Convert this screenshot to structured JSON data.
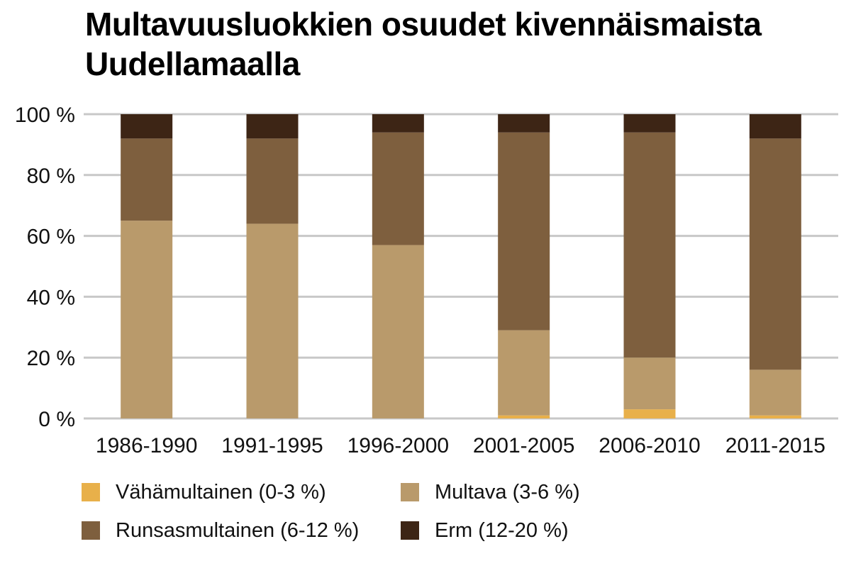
{
  "chart_data": {
    "type": "bar",
    "stacked": true,
    "title_lines": [
      "Multavuusluokkien osuudet kivennäismaista",
      "Uudellamaalla"
    ],
    "xlabel": "",
    "ylabel": "",
    "ylim": [
      0,
      100
    ],
    "yticks": [
      0,
      20,
      40,
      60,
      80,
      100
    ],
    "ytick_labels": [
      "0 %",
      "20 %",
      "40 %",
      "60 %",
      "80 %",
      "100 %"
    ],
    "grid": true,
    "legend_position": "bottom",
    "categories": [
      "1986-1990",
      "1991-1995",
      "1996-2000",
      "2001-2005",
      "2006-2010",
      "2011-2015"
    ],
    "series": [
      {
        "name": "Vähämultainen (0-3 %)",
        "color": "#E8B04A",
        "values": [
          0,
          0,
          0,
          1,
          3,
          1
        ]
      },
      {
        "name": "Multava (3-6 %)",
        "color": "#B99A6B",
        "values": [
          65,
          64,
          57,
          28,
          17,
          15
        ]
      },
      {
        "name": "Runsasmultainen (6-12 %)",
        "color": "#7E5F3E",
        "values": [
          27,
          28,
          37,
          65,
          74,
          76
        ]
      },
      {
        "name": "Erm (12-20 %)",
        "color": "#3D2515",
        "values": [
          8,
          8,
          6,
          6,
          6,
          8
        ]
      }
    ]
  }
}
